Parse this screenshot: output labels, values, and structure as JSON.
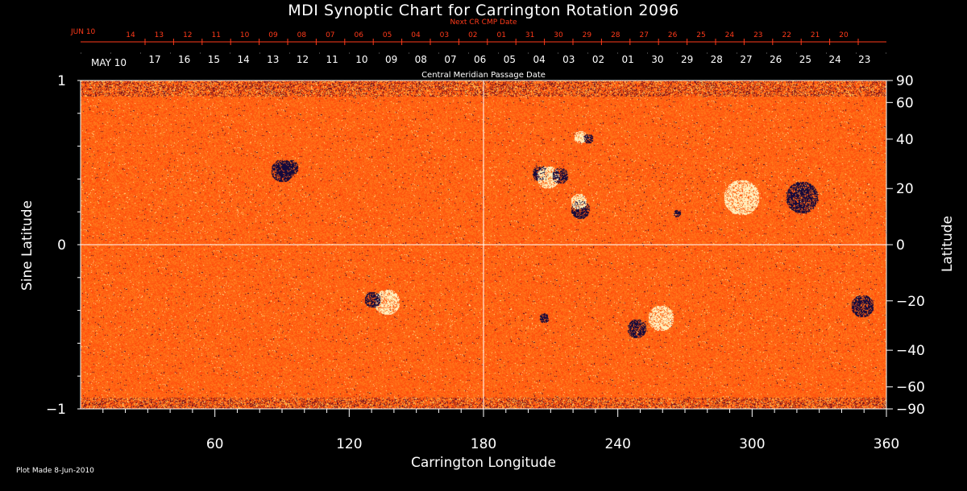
{
  "title": "MDI Synoptic Chart for Carrington Rotation 2096",
  "top_axis": {
    "next_cr_label": "Next CR CMP Date",
    "next_cr_start": "JUN 10",
    "next_cr_dates": [
      "14",
      "13",
      "12",
      "11",
      "10",
      "09",
      "08",
      "07",
      "06",
      "05",
      "04",
      "03",
      "02",
      "01",
      "31",
      "30",
      "29",
      "28",
      "27",
      "26",
      "25",
      "24",
      "23",
      "22",
      "21",
      "20"
    ],
    "cmp_start": "MAY 10",
    "cmp_dates": [
      "17",
      "16",
      "15",
      "14",
      "13",
      "12",
      "11",
      "10",
      "09",
      "08",
      "07",
      "06",
      "05",
      "04",
      "03",
      "02",
      "01",
      "30",
      "29",
      "28",
      "27",
      "26",
      "25",
      "24",
      "23"
    ],
    "cmp_label": "Central Meridian Passage Date"
  },
  "left_axis": {
    "label": "Sine Latitude",
    "ticks": [
      "1",
      "0",
      "−1"
    ]
  },
  "right_axis": {
    "label": "Latitude",
    "ticks": [
      "90",
      "60",
      "40",
      "20",
      "0",
      "−20",
      "−40",
      "−60",
      "−90"
    ]
  },
  "bottom_axis": {
    "label": "Carrington Longitude",
    "ticks": [
      "60",
      "120",
      "180",
      "240",
      "300",
      "360"
    ]
  },
  "footer": {
    "plot_made": "Plot Made  8-Jun-2010"
  },
  "colors": {
    "background": "#000000",
    "field": "#ff5a10",
    "next_cr_text": "#ff3a1a",
    "axis": "#ffffff"
  }
}
